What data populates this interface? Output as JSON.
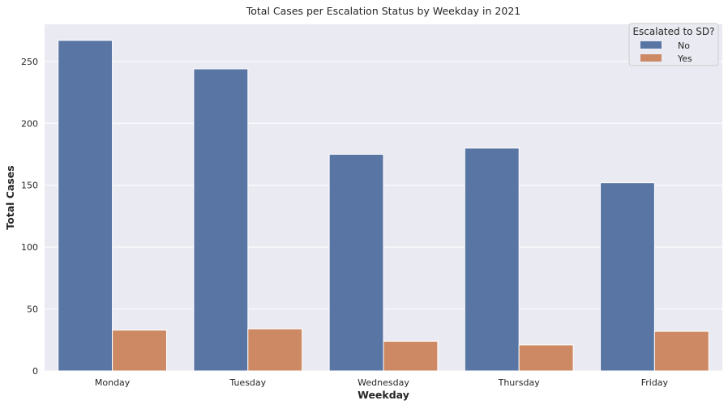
{
  "chart_data": {
    "type": "bar",
    "title": "Total Cases per Escalation Status by Weekday in 2021",
    "xlabel": "Weekday",
    "ylabel": "Total Cases",
    "categories": [
      "Monday",
      "Tuesday",
      "Wednesday",
      "Thursday",
      "Friday"
    ],
    "series": [
      {
        "name": "No",
        "values": [
          267,
          244,
          175,
          180,
          152
        ],
        "color": "#5875a4"
      },
      {
        "name": "Yes",
        "values": [
          33,
          34,
          24,
          21,
          32
        ],
        "color": "#cc8963"
      }
    ],
    "ylim": [
      0,
      280
    ],
    "yticks": [
      0,
      50,
      100,
      150,
      200,
      250
    ],
    "legend": {
      "title": "Escalated to SD?",
      "placement": "top-right"
    },
    "grid": true,
    "background": "#eaeaf2"
  }
}
